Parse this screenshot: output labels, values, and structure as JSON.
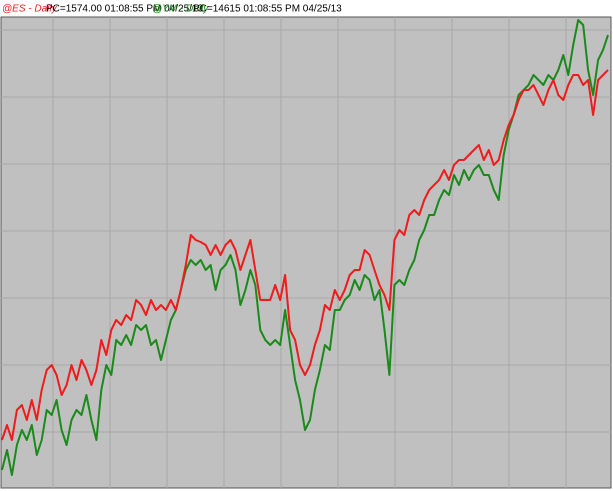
{
  "chart_data": {
    "type": "line",
    "ylim": [
      -53,
      415
    ],
    "yticks": [
      0,
      67,
      134,
      201,
      268,
      335,
      402
    ],
    "grid": true,
    "series": [
      {
        "name": "@ES - Daily",
        "quote": "PC=1574.00  01:08:55 PM  04/25/13",
        "color": "#ee1c1c",
        "values": [
          -8,
          7,
          -8,
          22,
          27,
          12,
          32,
          12,
          42,
          62,
          67,
          57,
          37,
          47,
          67,
          52,
          72,
          62,
          47,
          62,
          92,
          77,
          102,
          112,
          107,
          117,
          112,
          132,
          127,
          117,
          132,
          122,
          127,
          122,
          132,
          122,
          142,
          167,
          197,
          192,
          190,
          187,
          177,
          187,
          177,
          187,
          192,
          182,
          162,
          177,
          192,
          162,
          132,
          132,
          132,
          147,
          132,
          157,
          102,
          92,
          67,
          57,
          67,
          87,
          102,
          127,
          122,
          142,
          132,
          142,
          157,
          162,
          162,
          182,
          177,
          162,
          147,
          137,
          122,
          192,
          202,
          197,
          217,
          222,
          217,
          232,
          242,
          247,
          252,
          262,
          252,
          267,
          272,
          272,
          277,
          282,
          287,
          272,
          282,
          267,
          272,
          292,
          307,
          317,
          332,
          342,
          342,
          347,
          337,
          327,
          342,
          352,
          337,
          332,
          347,
          357,
          357,
          347,
          352,
          317,
          352,
          357,
          362
        ]
      },
      {
        "name": "@YM - Daily",
        "quote": "PC=14615  01:08:55 PM  04/25/13",
        "color": "#1a8a1a",
        "values": [
          -38,
          -18,
          -43,
          -13,
          2,
          -8,
          7,
          -23,
          -8,
          22,
          17,
          32,
          2,
          -13,
          12,
          22,
          17,
          37,
          12,
          -8,
          42,
          67,
          57,
          92,
          87,
          97,
          87,
          107,
          102,
          107,
          87,
          92,
          72,
          92,
          112,
          122,
          142,
          162,
          172,
          167,
          172,
          162,
          167,
          142,
          162,
          167,
          177,
          162,
          127,
          142,
          162,
          147,
          102,
          92,
          87,
          92,
          87,
          122,
          87,
          52,
          32,
          2,
          12,
          42,
          62,
          87,
          82,
          122,
          122,
          132,
          137,
          152,
          142,
          157,
          152,
          132,
          142,
          102,
          57,
          147,
          152,
          147,
          162,
          172,
          192,
          202,
          217,
          217,
          232,
          242,
          237,
          257,
          247,
          262,
          252,
          262,
          267,
          257,
          257,
          242,
          232,
          277,
          302,
          317,
          337,
          342,
          347,
          357,
          352,
          347,
          357,
          352,
          362,
          377,
          357,
          387,
          412,
          407,
          362,
          337,
          372,
          382,
          397
        ]
      }
    ]
  }
}
